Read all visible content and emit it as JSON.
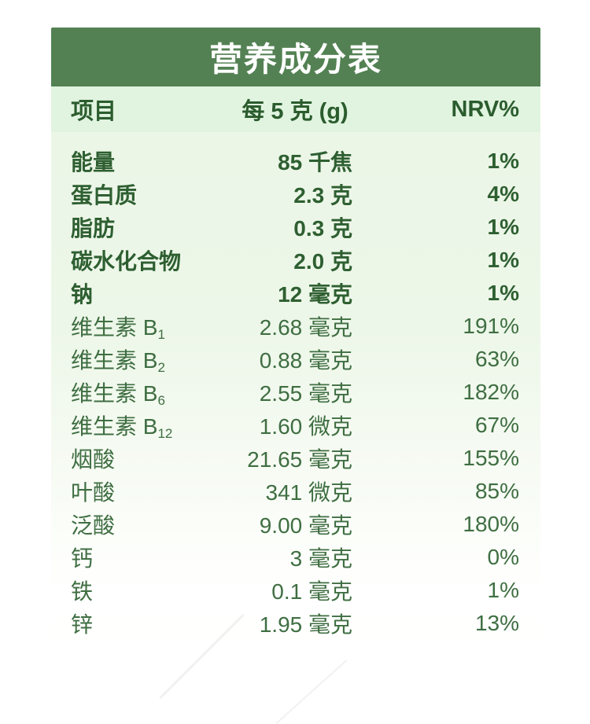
{
  "title": "营养成分表",
  "columns": {
    "item": "项目",
    "amount": "每 5 克 (g)",
    "nrv": "NRV%"
  },
  "rows": [
    {
      "name": "能量",
      "value": "85 千焦",
      "nrv": "1%"
    },
    {
      "name": "蛋白质",
      "value": "2.3 克",
      "nrv": "4%"
    },
    {
      "name": "脂肪",
      "value": "0.3 克",
      "nrv": "1%"
    },
    {
      "name": "碳水化合物",
      "value": "2.0 克",
      "nrv": "1%"
    },
    {
      "name": "钠",
      "value": "12 毫克",
      "nrv": "1%"
    },
    {
      "name": "维生素 B",
      "sub": "1",
      "value": "2.68 毫克",
      "nrv": "191%"
    },
    {
      "name": "维生素 B",
      "sub": "2",
      "value": "0.88 毫克",
      "nrv": "63%"
    },
    {
      "name": "维生素 B",
      "sub": "6",
      "value": "2.55 毫克",
      "nrv": "182%"
    },
    {
      "name": "维生素 B",
      "sub": "12",
      "value": "1.60 微克",
      "nrv": "67%"
    },
    {
      "name": "烟酸",
      "value": "21.65 毫克",
      "nrv": "155%"
    },
    {
      "name": "叶酸",
      "value": "341 微克",
      "nrv": "85%"
    },
    {
      "name": "泛酸",
      "value": "9.00 毫克",
      "nrv": "180%"
    },
    {
      "name": "钙",
      "value": "3 毫克",
      "nrv": "0%"
    },
    {
      "name": "铁",
      "value": "0.1 毫克",
      "nrv": "1%"
    },
    {
      "name": "锌",
      "value": "1.95 毫克",
      "nrv": "13%"
    }
  ],
  "colors": {
    "title_bar_bg": "#538153",
    "title_text": "#ffffff",
    "header_row_bg": "#e1f4e0",
    "header_text": "#2b5c2e",
    "bold_row_text": "#2e5f31",
    "regular_row_text": "#3f6e42",
    "body_bg_top": "#ebf6e7",
    "body_bg_bottom": "#ffffff"
  }
}
